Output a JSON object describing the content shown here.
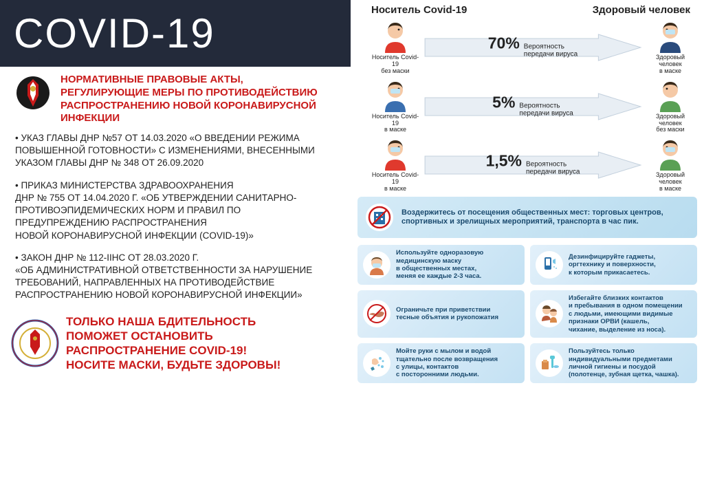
{
  "banner": {
    "title": "COVID-19"
  },
  "regulations": {
    "heading": "НОРМАТИВНЫЕ ПРАВОВЫЕ АКТЫ,\nРЕГУЛИРУЮЩИЕ МЕРЫ ПО ПРОТИВОДЕЙСТВИЮ РАСПРОСТРАНЕНИЮ НОВОЙ КОРОНАВИРУСНОЙ ИНФЕКЦИИ",
    "items": [
      "• УКАЗ ГЛАВЫ ДНР №57 ОТ 14.03.2020 «О ВВЕДЕНИИ РЕЖИМА ПОВЫШЕННОЙ ГОТОВНОСТИ» С ИЗМЕНЕНИЯМИ, ВНЕСЕННЫМИ  УКАЗОМ ГЛАВЫ ДНР № 348 ОТ 26.09.2020",
      "• ПРИКАЗ МИНИСТЕРСТВА ЗДРАВООХРАНЕНИЯ\nДНР № 755 ОТ 14.04.2020 Г. «ОБ УТВЕРЖДЕНИИ САНИТАРНО-ПРОТИВОЭПИДЕМИЧЕСКИХ НОРМ И ПРАВИЛ ПО ПРЕДУПРЕЖДЕНИЮ РАСПРОСТРАНЕНИЯ\nНОВОЙ КОРОНАВИРУСНОЙ ИНФЕКЦИИ (COVID-19)»",
      "• ЗАКОН ДНР № 112-IIHC ОТ 28.03.2020 Г.\n«ОБ АДМИНИСТРАТИВНОЙ ОТВЕТСТВЕННОСТИ ЗА НАРУШЕНИЕ ТРЕБОВАНИЙ, НАПРАВЛЕННЫХ НА ПРОТИВОДЕЙСТВИЕ РАСПРОСТРАНЕНИЮ НОВОЙ КОРОНАВИРУСНОЙ ИНФЕКЦИИ»"
    ]
  },
  "vigilance": "ТОЛЬКО НАША БДИТЕЛЬНОСТЬ\nПОМОЖЕТ ОСТАНОВИТЬ\nРАСПРОСТРАНЕНИЕ COVID-19!\nНОСИТЕ МАСКИ, БУДЬТЕ ЗДОРОВЫ!",
  "transmission": {
    "header_left": "Носитель Covid-19",
    "header_right": "Здоровый человек",
    "rows": [
      {
        "left_caption": "Носитель Covid-19\nбез маски",
        "left_shirt": "#e0392d",
        "left_mask": false,
        "percent": "70%",
        "label": "Вероятность\nпередачи вируса",
        "right_caption": "Здоровый человек\nв маске",
        "right_shirt": "#2a4b7c",
        "right_mask": true
      },
      {
        "left_caption": "Носитель Covid-19\nв маске",
        "left_shirt": "#3a6fb0",
        "left_mask": true,
        "percent": "5%",
        "label": "Вероятность\nпередачи вируса",
        "right_caption": "Здоровый человек\nбез маски",
        "right_shirt": "#5aa055",
        "right_mask": false
      },
      {
        "left_caption": "Носитель Covid-19\nв маске",
        "left_shirt": "#e0392d",
        "left_mask": true,
        "percent": "1,5%",
        "label": "Вероятность\nпередачи вируса",
        "right_caption": "Здоровый человек\nв маске",
        "right_shirt": "#5aa055",
        "right_mask": true
      }
    ],
    "arrow_fill": "#e8eef4",
    "arrow_stroke": "#c3d0dd"
  },
  "tips": {
    "wide": {
      "text": "Воздержитесь от посещения общественных мест: торговых центров, спортивных и зрелищных мероприятий, транспорта в час пик.",
      "icon_color": "#2a6fa8"
    },
    "items": [
      {
        "text": "Используйте одноразовую\nмедицинскую маску\nв общественных местах,\nменяя ее каждые 2-3 часа.",
        "icon_color": "#d97a4a"
      },
      {
        "text": "Дезинфицируйте гаджеты,\nоргтехнику и поверхности,\nк которым прикасаетесь.",
        "icon_color": "#2a6fa8"
      },
      {
        "text": "Ограничьте при приветствии\nтесные объятия и рукопожатия",
        "icon_color": "#c97a5a"
      },
      {
        "text": "Избегайте близких контактов\nи пребывания в одном помещении\nс людьми, имеющими видимые\nпризнаки ОРВИ (кашель,\nчихание, выделение из носа).",
        "icon_color": "#b85a3a"
      },
      {
        "text": "Мойте руки с мылом и водой\nтщательно после возвращения\nс улицы, контактов\nс посторонними людьми.",
        "icon_color": "#3a8aa8"
      },
      {
        "text": "Пользуйтесь только\nиндивидуальными предметами\nличной гигиены и посудой\n(полотенце, зубная щетка, чашка).",
        "icon_color": "#d98a4a"
      }
    ],
    "bg_light": "#e2f0fa",
    "bg_dark": "#c3e1f3",
    "text_color": "#1a4a6e"
  },
  "colors": {
    "banner_bg": "#232a3a",
    "red": "#c91a1a",
    "skin": "#f5c9a6",
    "hair": "#3a2a1a",
    "mask": "#bfe5f5"
  }
}
